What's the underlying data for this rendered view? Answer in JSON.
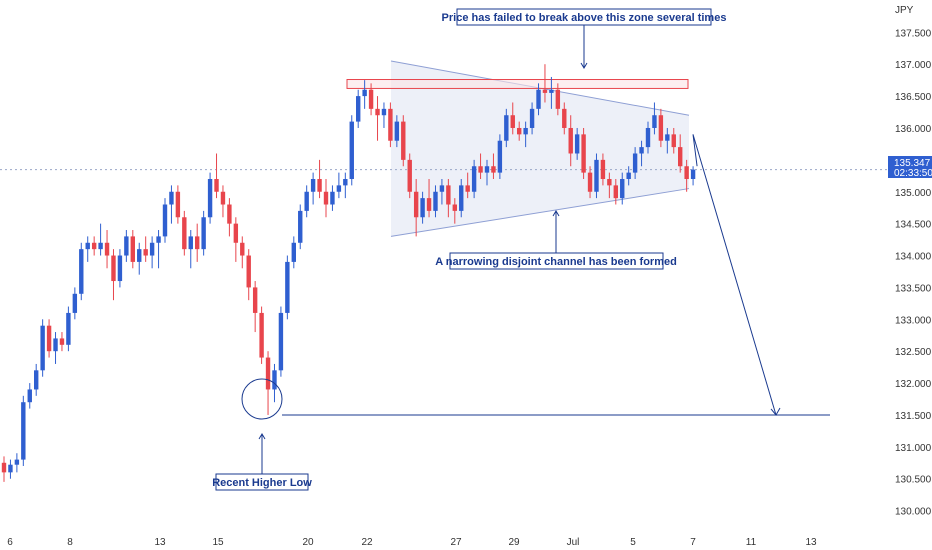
{
  "chart_data": {
    "type": "candlestick",
    "currency_label": "JPY",
    "y_ticks": [
      "137.500",
      "137.000",
      "136.500",
      "136.000",
      "135.500",
      "135.000",
      "134.500",
      "134.000",
      "133.500",
      "133.000",
      "132.500",
      "132.000",
      "131.500",
      "131.000",
      "130.500",
      "130.000"
    ],
    "x_ticks": [
      "6",
      "8",
      "13",
      "15",
      "20",
      "22",
      "27",
      "29",
      "Jul",
      "5",
      "7",
      "11",
      "13"
    ],
    "ylim": [
      129.9,
      137.85
    ],
    "current_price": "135.347",
    "countdown": "02:33:50",
    "colors": {
      "up": "#2f5fd0",
      "down": "#e8454c",
      "annotation": "#1a3a8f",
      "zone": "#e8454c",
      "channel_fill": "#dfe3f2"
    },
    "resistance_zone": {
      "low": 136.62,
      "high": 136.76
    },
    "support_level": 131.5,
    "annotations": {
      "top": "Price has failed to break above this zone several times",
      "middle": "A narrowing disjoint channel has been formed",
      "bottom": "Recent Higher Low"
    },
    "candles": [
      {
        "o": 130.75,
        "h": 130.85,
        "l": 130.45,
        "c": 130.6
      },
      {
        "o": 130.6,
        "h": 130.8,
        "l": 130.5,
        "c": 130.72
      },
      {
        "o": 130.72,
        "h": 130.9,
        "l": 130.6,
        "c": 130.8
      },
      {
        "o": 130.8,
        "h": 131.8,
        "l": 130.7,
        "c": 131.7
      },
      {
        "o": 131.7,
        "h": 132.0,
        "l": 131.6,
        "c": 131.9
      },
      {
        "o": 131.9,
        "h": 132.3,
        "l": 131.8,
        "c": 132.2
      },
      {
        "o": 132.2,
        "h": 133.0,
        "l": 132.1,
        "c": 132.9
      },
      {
        "o": 132.9,
        "h": 133.0,
        "l": 132.4,
        "c": 132.5
      },
      {
        "o": 132.5,
        "h": 132.8,
        "l": 132.3,
        "c": 132.7
      },
      {
        "o": 132.7,
        "h": 132.8,
        "l": 132.5,
        "c": 132.6
      },
      {
        "o": 132.6,
        "h": 133.2,
        "l": 132.5,
        "c": 133.1
      },
      {
        "o": 133.1,
        "h": 133.5,
        "l": 133.0,
        "c": 133.4
      },
      {
        "o": 133.4,
        "h": 134.2,
        "l": 133.3,
        "c": 134.1
      },
      {
        "o": 134.1,
        "h": 134.3,
        "l": 133.9,
        "c": 134.2
      },
      {
        "o": 134.2,
        "h": 134.3,
        "l": 134.0,
        "c": 134.1
      },
      {
        "o": 134.1,
        "h": 134.5,
        "l": 134.0,
        "c": 134.2
      },
      {
        "o": 134.2,
        "h": 134.4,
        "l": 133.8,
        "c": 134.0
      },
      {
        "o": 134.0,
        "h": 134.1,
        "l": 133.3,
        "c": 133.6
      },
      {
        "o": 133.6,
        "h": 134.1,
        "l": 133.5,
        "c": 134.0
      },
      {
        "o": 134.0,
        "h": 134.4,
        "l": 133.9,
        "c": 134.3
      },
      {
        "o": 134.3,
        "h": 134.4,
        "l": 133.8,
        "c": 133.9
      },
      {
        "o": 133.9,
        "h": 134.2,
        "l": 133.7,
        "c": 134.1
      },
      {
        "o": 134.1,
        "h": 134.3,
        "l": 133.9,
        "c": 134.0
      },
      {
        "o": 134.0,
        "h": 134.3,
        "l": 133.8,
        "c": 134.2
      },
      {
        "o": 134.2,
        "h": 134.4,
        "l": 133.8,
        "c": 134.3
      },
      {
        "o": 134.3,
        "h": 134.9,
        "l": 134.2,
        "c": 134.8
      },
      {
        "o": 134.8,
        "h": 135.1,
        "l": 134.5,
        "c": 135.0
      },
      {
        "o": 135.0,
        "h": 135.1,
        "l": 134.5,
        "c": 134.6
      },
      {
        "o": 134.6,
        "h": 134.7,
        "l": 134.0,
        "c": 134.1
      },
      {
        "o": 134.1,
        "h": 134.4,
        "l": 133.8,
        "c": 134.3
      },
      {
        "o": 134.3,
        "h": 134.5,
        "l": 133.9,
        "c": 134.1
      },
      {
        "o": 134.1,
        "h": 134.7,
        "l": 134.0,
        "c": 134.6
      },
      {
        "o": 134.6,
        "h": 135.3,
        "l": 134.5,
        "c": 135.2
      },
      {
        "o": 135.2,
        "h": 135.6,
        "l": 134.9,
        "c": 135.0
      },
      {
        "o": 135.0,
        "h": 135.1,
        "l": 134.6,
        "c": 134.8
      },
      {
        "o": 134.8,
        "h": 134.9,
        "l": 134.3,
        "c": 134.5
      },
      {
        "o": 134.5,
        "h": 134.6,
        "l": 133.9,
        "c": 134.2
      },
      {
        "o": 134.2,
        "h": 134.3,
        "l": 133.8,
        "c": 134.0
      },
      {
        "o": 134.0,
        "h": 134.1,
        "l": 133.3,
        "c": 133.5
      },
      {
        "o": 133.5,
        "h": 133.6,
        "l": 132.8,
        "c": 133.1
      },
      {
        "o": 133.1,
        "h": 133.2,
        "l": 132.3,
        "c": 132.4
      },
      {
        "o": 132.4,
        "h": 132.5,
        "l": 131.5,
        "c": 131.9
      },
      {
        "o": 131.9,
        "h": 132.3,
        "l": 131.7,
        "c": 132.2
      },
      {
        "o": 132.2,
        "h": 133.2,
        "l": 132.1,
        "c": 133.1
      },
      {
        "o": 133.1,
        "h": 134.0,
        "l": 133.0,
        "c": 133.9
      },
      {
        "o": 133.9,
        "h": 134.3,
        "l": 133.8,
        "c": 134.2
      },
      {
        "o": 134.2,
        "h": 134.8,
        "l": 134.1,
        "c": 134.7
      },
      {
        "o": 134.7,
        "h": 135.1,
        "l": 134.6,
        "c": 135.0
      },
      {
        "o": 135.0,
        "h": 135.3,
        "l": 134.8,
        "c": 135.2
      },
      {
        "o": 135.2,
        "h": 135.5,
        "l": 134.9,
        "c": 135.0
      },
      {
        "o": 135.0,
        "h": 135.2,
        "l": 134.6,
        "c": 134.8
      },
      {
        "o": 134.8,
        "h": 135.1,
        "l": 134.7,
        "c": 135.0
      },
      {
        "o": 135.0,
        "h": 135.3,
        "l": 134.9,
        "c": 135.1
      },
      {
        "o": 135.1,
        "h": 135.3,
        "l": 134.9,
        "c": 135.2
      },
      {
        "o": 135.2,
        "h": 136.2,
        "l": 135.1,
        "c": 136.1
      },
      {
        "o": 136.1,
        "h": 136.6,
        "l": 136.0,
        "c": 136.5
      },
      {
        "o": 136.5,
        "h": 136.75,
        "l": 136.3,
        "c": 136.6
      },
      {
        "o": 136.6,
        "h": 136.7,
        "l": 136.2,
        "c": 136.3
      },
      {
        "o": 136.3,
        "h": 136.5,
        "l": 135.8,
        "c": 136.2
      },
      {
        "o": 136.2,
        "h": 136.4,
        "l": 136.0,
        "c": 136.3
      },
      {
        "o": 136.3,
        "h": 136.4,
        "l": 135.7,
        "c": 135.8
      },
      {
        "o": 135.8,
        "h": 136.2,
        "l": 135.7,
        "c": 136.1
      },
      {
        "o": 136.1,
        "h": 136.2,
        "l": 135.4,
        "c": 135.5
      },
      {
        "o": 135.5,
        "h": 135.6,
        "l": 134.9,
        "c": 135.0
      },
      {
        "o": 135.0,
        "h": 135.2,
        "l": 134.3,
        "c": 134.6
      },
      {
        "o": 134.6,
        "h": 135.0,
        "l": 134.5,
        "c": 134.9
      },
      {
        "o": 134.9,
        "h": 135.2,
        "l": 134.6,
        "c": 134.7
      },
      {
        "o": 134.7,
        "h": 135.1,
        "l": 134.6,
        "c": 135.0
      },
      {
        "o": 135.0,
        "h": 135.2,
        "l": 134.8,
        "c": 135.1
      },
      {
        "o": 135.1,
        "h": 135.2,
        "l": 134.6,
        "c": 134.8
      },
      {
        "o": 134.8,
        "h": 134.9,
        "l": 134.5,
        "c": 134.7
      },
      {
        "o": 134.7,
        "h": 135.2,
        "l": 134.6,
        "c": 135.1
      },
      {
        "o": 135.1,
        "h": 135.3,
        "l": 134.9,
        "c": 135.0
      },
      {
        "o": 135.0,
        "h": 135.5,
        "l": 134.9,
        "c": 135.4
      },
      {
        "o": 135.4,
        "h": 135.6,
        "l": 135.2,
        "c": 135.3
      },
      {
        "o": 135.3,
        "h": 135.5,
        "l": 135.1,
        "c": 135.4
      },
      {
        "o": 135.4,
        "h": 135.6,
        "l": 135.2,
        "c": 135.3
      },
      {
        "o": 135.3,
        "h": 135.9,
        "l": 135.2,
        "c": 135.8
      },
      {
        "o": 135.8,
        "h": 136.3,
        "l": 135.7,
        "c": 136.2
      },
      {
        "o": 136.2,
        "h": 136.4,
        "l": 135.9,
        "c": 136.0
      },
      {
        "o": 136.0,
        "h": 136.1,
        "l": 135.8,
        "c": 135.9
      },
      {
        "o": 135.9,
        "h": 136.1,
        "l": 135.7,
        "c": 136.0
      },
      {
        "o": 136.0,
        "h": 136.4,
        "l": 135.9,
        "c": 136.3
      },
      {
        "o": 136.3,
        "h": 136.7,
        "l": 136.2,
        "c": 136.6
      },
      {
        "o": 136.6,
        "h": 137.0,
        "l": 136.4,
        "c": 136.55
      },
      {
        "o": 136.55,
        "h": 136.8,
        "l": 136.3,
        "c": 136.6
      },
      {
        "o": 136.6,
        "h": 136.7,
        "l": 136.2,
        "c": 136.3
      },
      {
        "o": 136.3,
        "h": 136.4,
        "l": 135.9,
        "c": 136.0
      },
      {
        "o": 136.0,
        "h": 136.2,
        "l": 135.4,
        "c": 135.6
      },
      {
        "o": 135.6,
        "h": 136.0,
        "l": 135.5,
        "c": 135.9
      },
      {
        "o": 135.9,
        "h": 136.0,
        "l": 135.2,
        "c": 135.3
      },
      {
        "o": 135.3,
        "h": 135.4,
        "l": 134.9,
        "c": 135.0
      },
      {
        "o": 135.0,
        "h": 135.6,
        "l": 134.9,
        "c": 135.5
      },
      {
        "o": 135.5,
        "h": 135.6,
        "l": 135.1,
        "c": 135.2
      },
      {
        "o": 135.2,
        "h": 135.3,
        "l": 134.9,
        "c": 135.1
      },
      {
        "o": 135.1,
        "h": 135.2,
        "l": 134.8,
        "c": 134.9
      },
      {
        "o": 134.9,
        "h": 135.3,
        "l": 134.8,
        "c": 135.2
      },
      {
        "o": 135.2,
        "h": 135.4,
        "l": 135.1,
        "c": 135.3
      },
      {
        "o": 135.3,
        "h": 135.7,
        "l": 135.2,
        "c": 135.6
      },
      {
        "o": 135.6,
        "h": 135.8,
        "l": 135.4,
        "c": 135.7
      },
      {
        "o": 135.7,
        "h": 136.1,
        "l": 135.6,
        "c": 136.0
      },
      {
        "o": 136.0,
        "h": 136.4,
        "l": 135.9,
        "c": 136.2
      },
      {
        "o": 136.2,
        "h": 136.3,
        "l": 135.7,
        "c": 135.8
      },
      {
        "o": 135.8,
        "h": 136.0,
        "l": 135.6,
        "c": 135.9
      },
      {
        "o": 135.9,
        "h": 136.0,
        "l": 135.6,
        "c": 135.7
      },
      {
        "o": 135.7,
        "h": 135.9,
        "l": 135.3,
        "c": 135.4
      },
      {
        "o": 135.4,
        "h": 135.5,
        "l": 135.0,
        "c": 135.2
      },
      {
        "o": 135.2,
        "h": 135.4,
        "l": 135.1,
        "c": 135.347
      }
    ]
  }
}
